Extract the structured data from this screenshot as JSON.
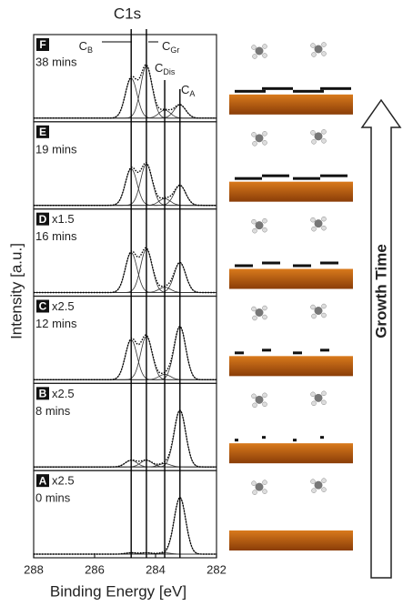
{
  "chart_data": {
    "type": "xps-stack",
    "title": "C1s",
    "xlabel": "Binding Energy [eV]",
    "ylabel": "Intensity [a.u.]",
    "xlim": [
      288,
      282
    ],
    "xticks": [
      288,
      286,
      284,
      282
    ],
    "ylim": [
      0,
      1.2
    ],
    "fwhm": 0.45,
    "peak_positions": [
      284.8,
      284.3,
      283.7,
      283.2
    ],
    "peak_labels": [
      {
        "base": "C",
        "sub": "B"
      },
      {
        "base": "C",
        "sub": "Gr"
      },
      {
        "base": "C",
        "sub": "Dis"
      },
      {
        "base": "C",
        "sub": "A"
      }
    ],
    "panels": [
      {
        "label": "F",
        "time": "38 mins",
        "peaks": [
          0.6,
          0.78,
          0.12,
          0.2
        ]
      },
      {
        "label": "E",
        "scale": "",
        "time": "19 mins",
        "peaks": [
          0.55,
          0.62,
          0.1,
          0.3
        ]
      },
      {
        "label": "D",
        "scale": "x1.5",
        "time": "16 mins",
        "peaks": [
          0.6,
          0.65,
          0.08,
          0.45
        ]
      },
      {
        "label": "C",
        "scale": "x2.5",
        "time": "12 mins",
        "peaks": [
          0.6,
          0.65,
          0.08,
          0.8
        ]
      },
      {
        "label": "B",
        "scale": "x2.5",
        "time": "8 mins",
        "peaks": [
          0.1,
          0.1,
          0.05,
          0.85
        ]
      },
      {
        "label": "A",
        "scale": "x2.5",
        "time": "0 mins",
        "peaks": [
          0.02,
          0.02,
          0.02,
          0.85
        ]
      }
    ],
    "side_label": "Growth Time"
  }
}
